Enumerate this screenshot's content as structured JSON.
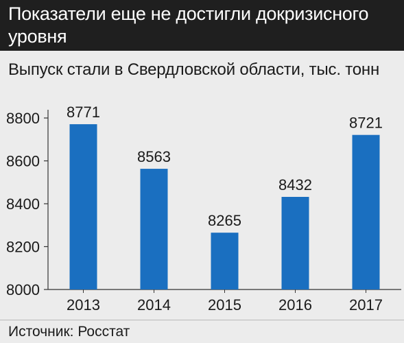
{
  "title": "Показатели еще не достигли докризисного уровня",
  "subtitle": "Выпуск стали в Свердловской области, тыс. тонн",
  "source": "Источник: Росстат",
  "colors": {
    "bar": "#1a6fc0",
    "title_bg": "#1f1f1f",
    "background": "#ececec"
  },
  "chart_data": {
    "type": "bar",
    "title": "Показатели еще не достигли докризисного уровня",
    "subtitle": "Выпуск стали в Свердловской области, тыс. тонн",
    "xlabel": "",
    "ylabel": "",
    "categories": [
      "2013",
      "2014",
      "2015",
      "2016",
      "2017"
    ],
    "values": [
      8771,
      8563,
      8265,
      8432,
      8721
    ],
    "data_labels": [
      "8771",
      "8563",
      "8265",
      "8432",
      "8721"
    ],
    "ylim": [
      8000,
      8800
    ],
    "yticks": [
      8000,
      8200,
      8400,
      8600,
      8800
    ],
    "ytick_labels": [
      "8000",
      "8200",
      "8400",
      "8600",
      "8800"
    ],
    "grid": false,
    "legend": "none"
  }
}
